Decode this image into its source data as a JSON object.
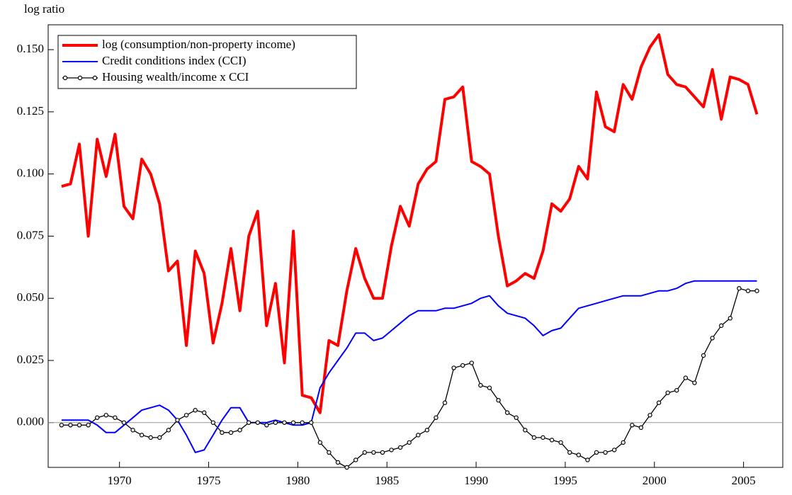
{
  "chart_data": {
    "type": "line",
    "y_label": "log ratio",
    "x": [
      1966.75,
      1967.25,
      1967.75,
      1968.25,
      1968.75,
      1969.25,
      1969.75,
      1970.25,
      1970.75,
      1971.25,
      1971.75,
      1972.25,
      1972.75,
      1973.25,
      1973.75,
      1974.25,
      1974.75,
      1975.25,
      1975.75,
      1976.25,
      1976.75,
      1977.25,
      1977.75,
      1978.25,
      1978.75,
      1979.25,
      1979.75,
      1980.25,
      1980.75,
      1981.25,
      1981.75,
      1982.25,
      1982.75,
      1983.25,
      1983.75,
      1984.25,
      1984.75,
      1985.25,
      1985.75,
      1986.25,
      1986.75,
      1987.25,
      1987.75,
      1988.25,
      1988.75,
      1989.25,
      1989.75,
      1990.25,
      1990.75,
      1991.25,
      1991.75,
      1992.25,
      1992.75,
      1993.25,
      1993.75,
      1994.25,
      1994.75,
      1995.25,
      1995.75,
      1996.25,
      1996.75,
      1997.25,
      1997.75,
      1998.25,
      1998.75,
      1999.25,
      1999.75,
      2000.25,
      2000.75,
      2001.25,
      2001.75,
      2002.25,
      2002.75,
      2003.25,
      2003.75,
      2004.25,
      2004.75,
      2005.25,
      2005.75
    ],
    "series": [
      {
        "name": "log (consumption/non-property income)",
        "color": "#ff0000",
        "width": 4,
        "marker": false,
        "values": [
          0.095,
          0.096,
          0.112,
          0.075,
          0.114,
          0.099,
          0.116,
          0.087,
          0.082,
          0.106,
          0.1,
          0.088,
          0.061,
          0.065,
          0.031,
          0.069,
          0.06,
          0.032,
          0.048,
          0.07,
          0.045,
          0.075,
          0.085,
          0.039,
          0.056,
          0.024,
          0.077,
          0.011,
          0.01,
          0.004,
          0.033,
          0.031,
          0.053,
          0.07,
          0.058,
          0.05,
          0.05,
          0.071,
          0.087,
          0.079,
          0.096,
          0.102,
          0.105,
          0.13,
          0.131,
          0.135,
          0.105,
          0.103,
          0.1,
          0.075,
          0.055,
          0.057,
          0.06,
          0.058,
          0.069,
          0.088,
          0.085,
          0.09,
          0.103,
          0.098,
          0.133,
          0.119,
          0.117,
          0.136,
          0.13,
          0.143,
          0.151,
          0.156,
          0.14,
          0.136,
          0.135,
          0.131,
          0.127,
          0.142,
          0.122,
          0.139,
          0.138,
          0.136,
          0.124
        ]
      },
      {
        "name": "Credit conditions index (CCI)",
        "color": "#0000ff",
        "width": 2,
        "marker": false,
        "values": [
          0.001,
          0.001,
          0.001,
          0.001,
          -0.001,
          -0.004,
          -0.004,
          -0.001,
          0.002,
          0.005,
          0.006,
          0.007,
          0.005,
          0.001,
          -0.005,
          -0.012,
          -0.011,
          -0.005,
          0.001,
          0.006,
          0.006,
          0.0,
          0.0,
          0.0,
          0.001,
          0.0,
          -0.001,
          -0.001,
          0.0,
          0.014,
          0.02,
          0.025,
          0.03,
          0.036,
          0.036,
          0.033,
          0.034,
          0.037,
          0.04,
          0.043,
          0.045,
          0.045,
          0.045,
          0.046,
          0.046,
          0.047,
          0.048,
          0.05,
          0.051,
          0.047,
          0.044,
          0.043,
          0.042,
          0.039,
          0.035,
          0.037,
          0.038,
          0.042,
          0.046,
          0.047,
          0.048,
          0.049,
          0.05,
          0.051,
          0.051,
          0.051,
          0.052,
          0.053,
          0.053,
          0.054,
          0.056,
          0.057,
          0.057,
          0.057,
          0.057,
          0.057,
          0.057,
          0.057,
          0.057
        ]
      },
      {
        "name": "Housing wealth/income x CCI",
        "color": "#000000",
        "width": 1.3,
        "marker": true,
        "values": [
          -0.001,
          -0.001,
          -0.001,
          -0.001,
          0.002,
          0.003,
          0.002,
          0.0,
          -0.003,
          -0.005,
          -0.006,
          -0.006,
          -0.003,
          0.001,
          0.003,
          0.005,
          0.004,
          0.0,
          -0.004,
          -0.004,
          -0.003,
          0.0,
          0.0,
          -0.001,
          0.0,
          0.0,
          0.0,
          0.0,
          0.0,
          -0.008,
          -0.012,
          -0.016,
          -0.018,
          -0.015,
          -0.012,
          -0.012,
          -0.012,
          -0.011,
          -0.01,
          -0.008,
          -0.005,
          -0.003,
          0.002,
          0.008,
          0.022,
          0.023,
          0.024,
          0.015,
          0.014,
          0.009,
          0.004,
          0.002,
          -0.003,
          -0.006,
          -0.006,
          -0.007,
          -0.008,
          -0.012,
          -0.013,
          -0.015,
          -0.012,
          -0.012,
          -0.011,
          -0.008,
          -0.001,
          -0.002,
          0.003,
          0.008,
          0.012,
          0.013,
          0.018,
          0.016,
          0.027,
          0.034,
          0.039,
          0.042,
          0.054,
          0.053,
          0.053
        ]
      }
    ],
    "xlim": [
      1966,
      2007.2
    ],
    "xticks": [
      1970,
      1975,
      1980,
      1985,
      1990,
      1995,
      2000,
      2005
    ],
    "ylim": [
      -0.018,
      0.16
    ],
    "yticks": [
      {
        "value": 0,
        "label": "0.000"
      },
      {
        "value": 0.025,
        "label": "0.025"
      },
      {
        "value": 0.05,
        "label": "0.050"
      },
      {
        "value": 0.075,
        "label": "0.075"
      },
      {
        "value": 0.1,
        "label": "0.100"
      },
      {
        "value": 0.125,
        "label": "0.125"
      },
      {
        "value": 0.15,
        "label": "0.150"
      }
    ],
    "zero_line": true,
    "legend": "upper-left"
  }
}
